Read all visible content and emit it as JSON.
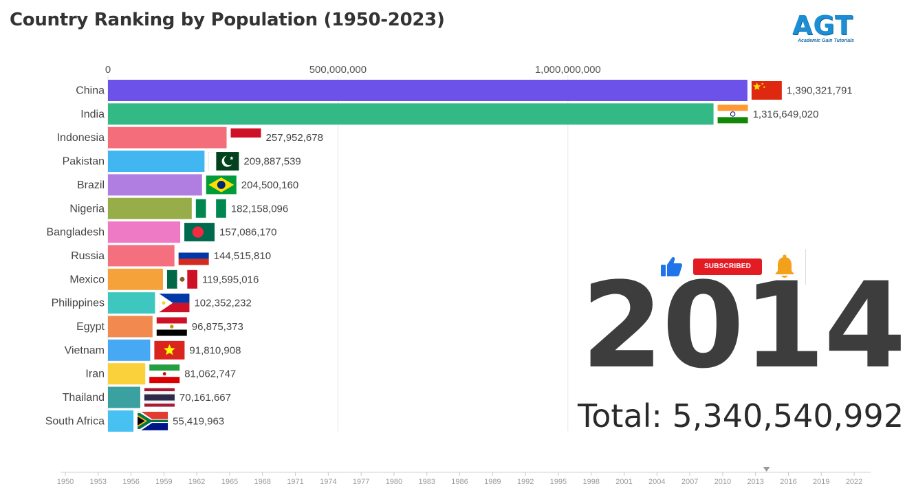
{
  "title": "Country Ranking by Population (1950-2023)",
  "logo": {
    "text": "AGT",
    "subtitle": "Academic Gain Tutorials",
    "color": "#1a8fd6"
  },
  "year_display": "2014",
  "total_display": "Total: 5,340,540,992",
  "subscribe": {
    "button_label": "SUBSCRIBED",
    "icons": [
      "thumbs-up-icon",
      "bell-icon"
    ]
  },
  "chart_data": {
    "type": "bar",
    "orientation": "horizontal",
    "x_ticks": [
      0,
      500000000,
      1000000000
    ],
    "x_tick_labels": [
      "0",
      "500,000,000",
      "1,000,000,000"
    ],
    "xlim": [
      0,
      1390321791
    ],
    "grid": true,
    "categories": [
      "China",
      "India",
      "Indonesia",
      "Pakistan",
      "Brazil",
      "Nigeria",
      "Bangladesh",
      "Russia",
      "Mexico",
      "Philippines",
      "Egypt",
      "Vietnam",
      "Iran",
      "Thailand",
      "South Africa"
    ],
    "values": [
      1390321791,
      1316649020,
      257952678,
      209887539,
      204500160,
      182158096,
      157086170,
      144515810,
      119595016,
      102352232,
      96875373,
      91810908,
      81062747,
      70161667,
      55419963
    ],
    "value_labels": [
      "1,390,321,791",
      "1,316,649,020",
      "257,952,678",
      "209,887,539",
      "204,500,160",
      "182,158,096",
      "157,086,170",
      "144,515,810",
      "119,595,016",
      "102,352,232",
      "96,875,373",
      "91,810,908",
      "81,062,747",
      "70,161,667",
      "55,419,963"
    ],
    "colors": [
      "#6c52e8",
      "#33b985",
      "#f46d7a",
      "#41b6f0",
      "#b07de0",
      "#97ad4a",
      "#ee7ac6",
      "#f4707f",
      "#f5a23a",
      "#3ec7be",
      "#f28a50",
      "#47a8f3",
      "#fad13a",
      "#3aa0a0",
      "#47c0f2"
    ],
    "flags": [
      "china-flag",
      "india-flag",
      "indonesia-flag",
      "pakistan-flag",
      "brazil-flag",
      "nigeria-flag",
      "bangladesh-flag",
      "russia-flag",
      "mexico-flag",
      "philippines-flag",
      "egypt-flag",
      "vietnam-flag",
      "iran-flag",
      "thailand-flag",
      "south-africa-flag"
    ]
  },
  "timeline": {
    "labels": [
      "1950",
      "1953",
      "1956",
      "1959",
      "1962",
      "1965",
      "1968",
      "1971",
      "1974",
      "1977",
      "1980",
      "1983",
      "1986",
      "1989",
      "1992",
      "1995",
      "1998",
      "2001",
      "2004",
      "2007",
      "2010",
      "2013",
      "2016",
      "2019",
      "2022"
    ],
    "current": 2014,
    "start": 1950,
    "end": 2023
  }
}
